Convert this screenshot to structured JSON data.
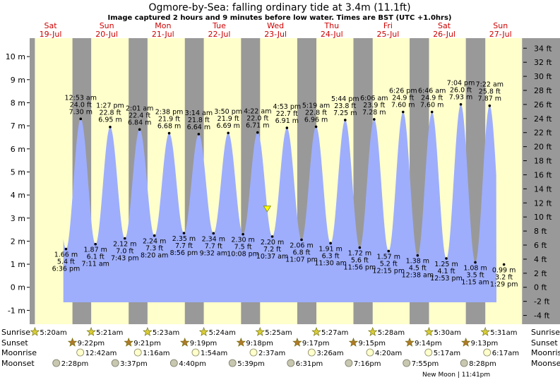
{
  "header": {
    "title": "Ogmore-by-Sea: falling  ordinary tide at 3.4m (11.1ft)",
    "subtitle": "Image captured 2 hours and 9 minutes before low water. Times are BST (UTC +1.0hrs)"
  },
  "days": [
    {
      "name": "Sat",
      "date": "19-Jul"
    },
    {
      "name": "Sun",
      "date": "20-Jul"
    },
    {
      "name": "Mon",
      "date": "21-Jul"
    },
    {
      "name": "Tue",
      "date": "22-Jul"
    },
    {
      "name": "Wed",
      "date": "23-Jul"
    },
    {
      "name": "Thu",
      "date": "24-Jul"
    },
    {
      "name": "Fri",
      "date": "25-Jul"
    },
    {
      "name": "Sat",
      "date": "26-Jul"
    },
    {
      "name": "Sun",
      "date": "27-Jul"
    }
  ],
  "colors": {
    "day": "#ffffcc",
    "night": "#999999",
    "water": "#9eaefc",
    "day_label": "#cc0000",
    "current_marker": "#ffff00"
  },
  "chart_data": {
    "type": "area",
    "y_ticks_m": [
      "-1 m",
      "0 m",
      "1 m",
      "2 m",
      "3 m",
      "4 m",
      "5 m",
      "6 m",
      "7 m",
      "8 m",
      "9 m",
      "10 m"
    ],
    "y_ticks_ft": [
      "-4 ft",
      "-2 ft",
      "0 ft",
      "2 ft",
      "4 ft",
      "6 ft",
      "8 ft",
      "10 ft",
      "12 ft",
      "14 ft",
      "16 ft",
      "18 ft",
      "20 ft",
      "22 ft",
      "24 ft",
      "26 ft",
      "28 ft",
      "30 ft",
      "32 ft",
      "34 ft"
    ],
    "ylim_m": [
      -1.6,
      10.8
    ],
    "extremes": [
      {
        "type": "low",
        "day": 0,
        "t": "18:36",
        "m": 1.66,
        "m_label": "1.66 m",
        "ft": "5.4 ft",
        "time": "6:36 pm"
      },
      {
        "type": "high",
        "day": 1,
        "t": "00:53",
        "m": 7.3,
        "m_label": "7.30 m",
        "ft": "24.0 ft",
        "time": "12:53 am"
      },
      {
        "type": "low",
        "day": 1,
        "t": "07:11",
        "m": 1.87,
        "m_label": "1.87 m",
        "ft": "6.1 ft",
        "time": "7:11 am"
      },
      {
        "type": "high",
        "day": 1,
        "t": "13:27",
        "m": 6.95,
        "m_label": "6.95 m",
        "ft": "22.8 ft",
        "time": "1:27 pm"
      },
      {
        "type": "low",
        "day": 1,
        "t": "19:43",
        "m": 2.12,
        "m_label": "2.12 m",
        "ft": "7.0 ft",
        "time": "7:43 pm"
      },
      {
        "type": "high",
        "day": 2,
        "t": "02:01",
        "m": 6.84,
        "m_label": "6.84 m",
        "ft": "22.4 ft",
        "time": "2:01 am"
      },
      {
        "type": "low",
        "day": 2,
        "t": "08:20",
        "m": 2.24,
        "m_label": "2.24 m",
        "ft": "7.3 ft",
        "time": "8:20 am"
      },
      {
        "type": "high",
        "day": 2,
        "t": "14:38",
        "m": 6.68,
        "m_label": "6.68 m",
        "ft": "21.9 ft",
        "time": "2:38 pm"
      },
      {
        "type": "low",
        "day": 2,
        "t": "20:56",
        "m": 2.35,
        "m_label": "2.35 m",
        "ft": "7.7 ft",
        "time": "8:56 pm"
      },
      {
        "type": "high",
        "day": 3,
        "t": "03:14",
        "m": 6.64,
        "m_label": "6.64 m",
        "ft": "21.8 ft",
        "time": "3:14 am"
      },
      {
        "type": "low",
        "day": 3,
        "t": "09:32",
        "m": 2.34,
        "m_label": "2.34 m",
        "ft": "7.7 ft",
        "time": "9:32 am"
      },
      {
        "type": "high",
        "day": 3,
        "t": "15:50",
        "m": 6.69,
        "m_label": "6.69 m",
        "ft": "21.9 ft",
        "time": "3:50 pm"
      },
      {
        "type": "low",
        "day": 3,
        "t": "22:08",
        "m": 2.3,
        "m_label": "2.30 m",
        "ft": "7.5 ft",
        "time": "10:08 pm"
      },
      {
        "type": "high",
        "day": 4,
        "t": "04:22",
        "m": 6.71,
        "m_label": "6.71 m",
        "ft": "22.0 ft",
        "time": "4:22 am"
      },
      {
        "type": "low",
        "day": 4,
        "t": "10:37",
        "m": 2.2,
        "m_label": "2.20 m",
        "ft": "7.2 ft",
        "time": "10:37 am"
      },
      {
        "type": "high",
        "day": 4,
        "t": "16:53",
        "m": 6.91,
        "m_label": "6.91 m",
        "ft": "22.7 ft",
        "time": "4:53 pm"
      },
      {
        "type": "low",
        "day": 4,
        "t": "23:07",
        "m": 2.06,
        "m_label": "2.06 m",
        "ft": "6.8 ft",
        "time": "11:07 pm"
      },
      {
        "type": "high",
        "day": 5,
        "t": "05:19",
        "m": 6.96,
        "m_label": "6.96 m",
        "ft": "22.8 ft",
        "time": "5:19 am"
      },
      {
        "type": "low",
        "day": 5,
        "t": "11:30",
        "m": 1.91,
        "m_label": "1.91 m",
        "ft": "6.3 ft",
        "time": "11:30 am"
      },
      {
        "type": "high",
        "day": 5,
        "t": "17:44",
        "m": 7.25,
        "m_label": "7.25 m",
        "ft": "23.8 ft",
        "time": "5:44 pm"
      },
      {
        "type": "low",
        "day": 5,
        "t": "23:56",
        "m": 1.72,
        "m_label": "1.72 m",
        "ft": "5.6 ft",
        "time": "11:56 pm"
      },
      {
        "type": "high",
        "day": 6,
        "t": "06:06",
        "m": 7.28,
        "m_label": "7.28 m",
        "ft": "23.9 ft",
        "time": "6:06 am"
      },
      {
        "type": "low",
        "day": 6,
        "t": "12:15",
        "m": 1.57,
        "m_label": "1.57 m",
        "ft": "5.2 ft",
        "time": "12:15 pm"
      },
      {
        "type": "high",
        "day": 6,
        "t": "18:26",
        "m": 7.6,
        "m_label": "7.60 m",
        "ft": "24.9 ft",
        "time": "6:26 pm"
      },
      {
        "type": "low",
        "day": 7,
        "t": "00:38",
        "m": 1.38,
        "m_label": "1.38 m",
        "ft": "4.5 ft",
        "time": "12:38 am"
      },
      {
        "type": "high",
        "day": 7,
        "t": "06:46",
        "m": 7.6,
        "m_label": "7.60 m",
        "ft": "24.9 ft",
        "time": "6:46 am"
      },
      {
        "type": "low",
        "day": 7,
        "t": "12:53",
        "m": 1.25,
        "m_label": "1.25 m",
        "ft": "4.1 ft",
        "time": "12:53 pm"
      },
      {
        "type": "high",
        "day": 7,
        "t": "19:04",
        "m": 7.93,
        "m_label": "7.93 m",
        "ft": "26.0 ft",
        "time": "7:04 pm"
      },
      {
        "type": "low",
        "day": 8,
        "t": "01:15",
        "m": 1.08,
        "m_label": "1.08 m",
        "ft": "3.5 ft",
        "time": "1:15 am"
      },
      {
        "type": "high",
        "day": 8,
        "t": "07:22",
        "m": 7.87,
        "m_label": "7.87 m",
        "ft": "25.8 ft",
        "time": "7:22 am"
      },
      {
        "type": "low",
        "day": 8,
        "t": "13:29",
        "m": 0.99,
        "m_label": "0.99 m",
        "ft": "3.2 ft",
        "time": "1:29 pm"
      }
    ],
    "current": {
      "day": 4,
      "t": "08:28",
      "m": 3.4
    }
  },
  "sun_moon": {
    "row_labels": [
      "Sunrise",
      "Sunset",
      "Moonrise",
      "Moonset"
    ],
    "sunrise": [
      {
        "day": 0,
        "t": "05:20",
        "label": "5:20am"
      },
      {
        "day": 1,
        "t": "05:21",
        "label": "5:21am"
      },
      {
        "day": 2,
        "t": "05:23",
        "label": "5:23am"
      },
      {
        "day": 3,
        "t": "05:24",
        "label": "5:24am"
      },
      {
        "day": 4,
        "t": "05:25",
        "label": "5:25am"
      },
      {
        "day": 5,
        "t": "05:27",
        "label": "5:27am"
      },
      {
        "day": 6,
        "t": "05:28",
        "label": "5:28am"
      },
      {
        "day": 7,
        "t": "05:30",
        "label": "5:30am"
      },
      {
        "day": 8,
        "t": "05:31",
        "label": "5:31am"
      }
    ],
    "sunset": [
      {
        "day": 0,
        "t": "21:22",
        "label": "9:22pm"
      },
      {
        "day": 1,
        "t": "21:21",
        "label": "9:21pm"
      },
      {
        "day": 2,
        "t": "21:19",
        "label": "9:19pm"
      },
      {
        "day": 3,
        "t": "21:18",
        "label": "9:18pm"
      },
      {
        "day": 4,
        "t": "21:17",
        "label": "9:17pm"
      },
      {
        "day": 5,
        "t": "21:15",
        "label": "9:15pm"
      },
      {
        "day": 6,
        "t": "21:14",
        "label": "9:14pm"
      },
      {
        "day": 7,
        "t": "21:13",
        "label": "9:13pm"
      }
    ],
    "moonrise": [
      {
        "day": 1,
        "t": "00:42",
        "label": "12:42am"
      },
      {
        "day": 2,
        "t": "01:16",
        "label": "1:16am"
      },
      {
        "day": 3,
        "t": "01:54",
        "label": "1:54am"
      },
      {
        "day": 4,
        "t": "02:37",
        "label": "2:37am"
      },
      {
        "day": 5,
        "t": "03:26",
        "label": "3:26am"
      },
      {
        "day": 6,
        "t": "04:20",
        "label": "4:20am"
      },
      {
        "day": 7,
        "t": "05:17",
        "label": "5:17am"
      },
      {
        "day": 8,
        "t": "06:17",
        "label": "6:17am"
      }
    ],
    "moonset": [
      {
        "day": 0,
        "t": "14:28",
        "label": "2:28pm"
      },
      {
        "day": 1,
        "t": "15:37",
        "label": "3:37pm"
      },
      {
        "day": 2,
        "t": "16:40",
        "label": "4:40pm"
      },
      {
        "day": 3,
        "t": "17:39",
        "label": "5:39pm"
      },
      {
        "day": 4,
        "t": "18:31",
        "label": "6:31pm"
      },
      {
        "day": 5,
        "t": "19:16",
        "label": "7:16pm"
      },
      {
        "day": 6,
        "t": "19:55",
        "label": "7:55pm"
      },
      {
        "day": 7,
        "t": "20:28",
        "label": "8:28pm"
      }
    ],
    "new_moon": "New Moon | 11:41pm"
  }
}
